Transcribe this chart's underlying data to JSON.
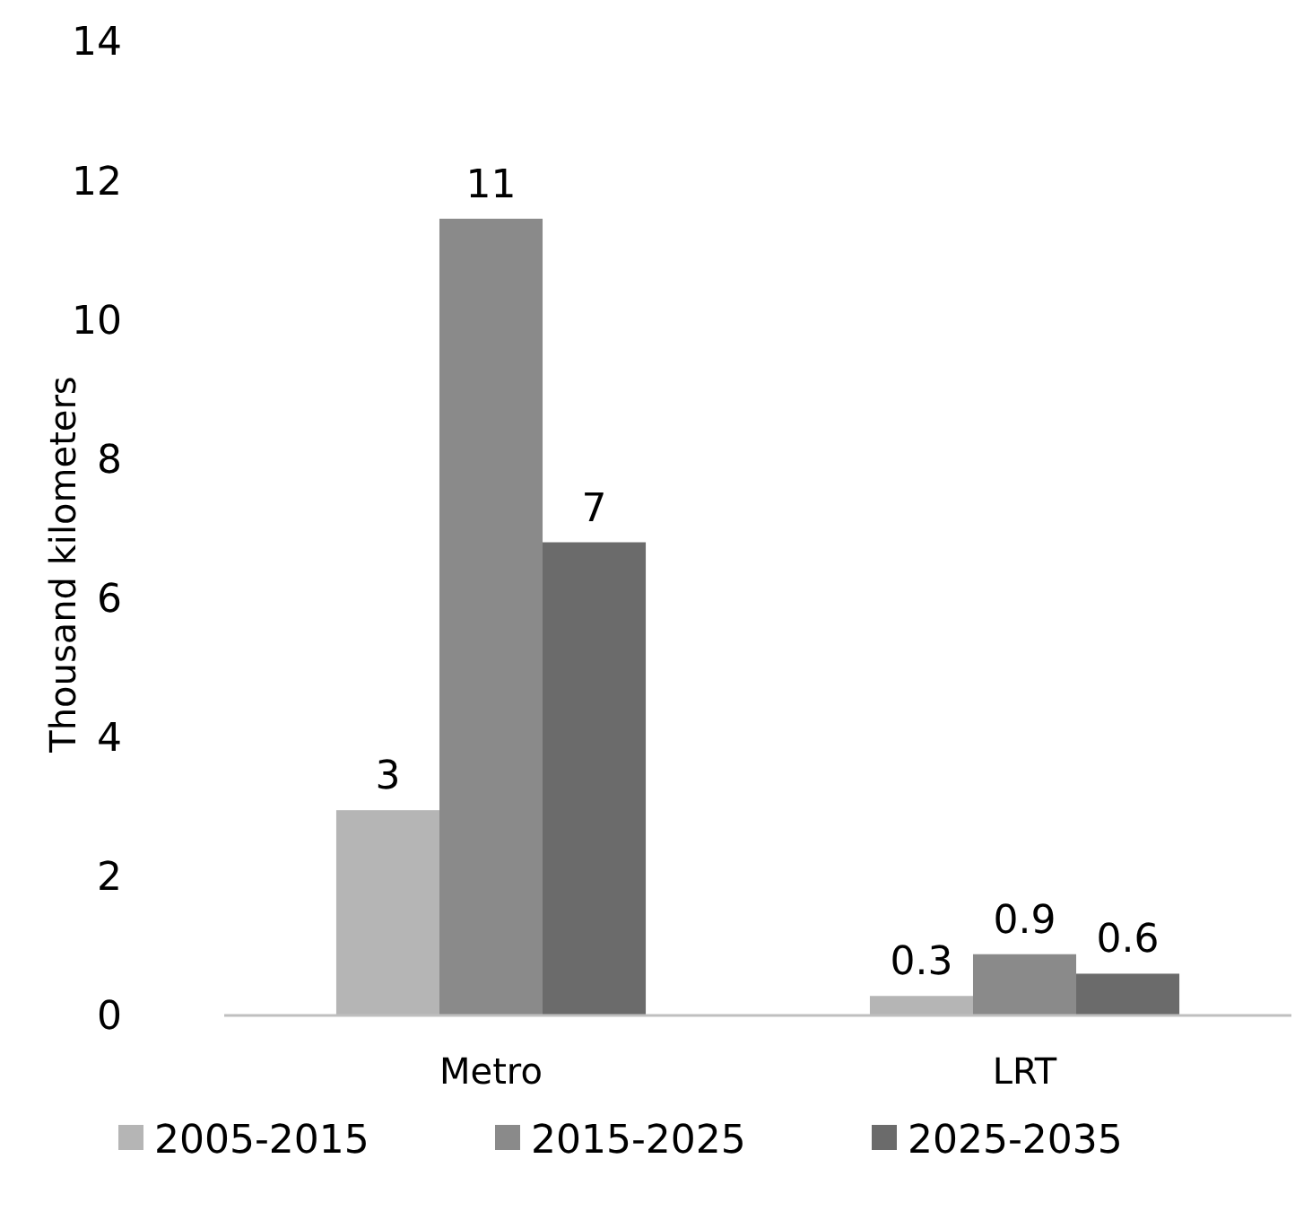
{
  "chart_data": {
    "type": "bar",
    "ylabel": "Thousand kilometers",
    "categories": [
      "Metro",
      "LRT"
    ],
    "series": [
      {
        "name": "2005-2015",
        "color": "#b5b5b5",
        "values": [
          2.95,
          0.28
        ],
        "value_labels": [
          "3",
          "0.3"
        ]
      },
      {
        "name": "2015-2025",
        "color": "#8a8a8a",
        "values": [
          11.45,
          0.88
        ],
        "value_labels": [
          "11",
          "0.9"
        ]
      },
      {
        "name": "2025-2035",
        "color": "#6b6b6b",
        "values": [
          6.8,
          0.6
        ],
        "value_labels": [
          "7",
          "0.6"
        ]
      }
    ],
    "ylim": [
      0,
      14
    ],
    "yticks": [
      0,
      2,
      4,
      6,
      8,
      10,
      12,
      14
    ],
    "grid": false,
    "legend": "bottom"
  }
}
